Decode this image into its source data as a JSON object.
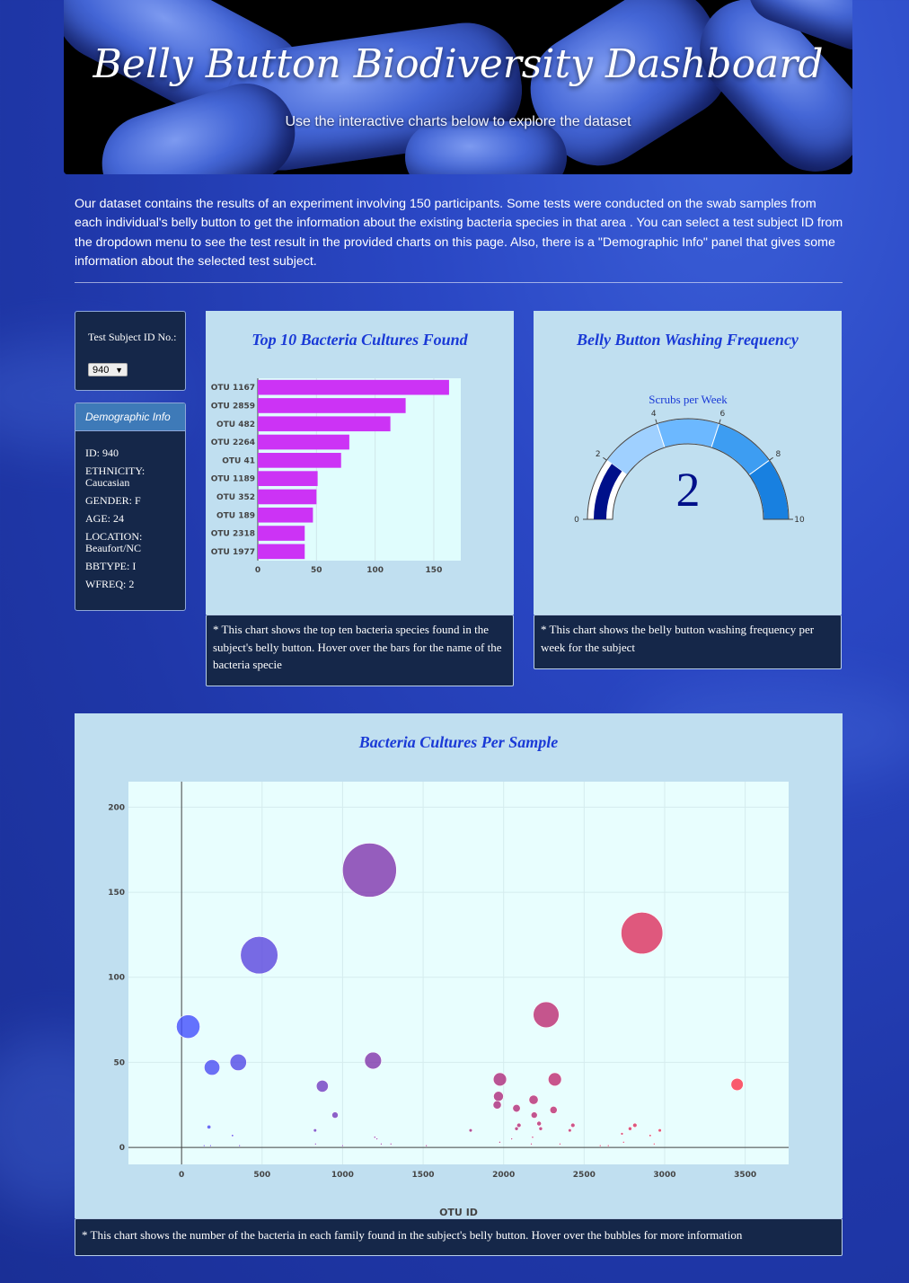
{
  "header": {
    "title": "Belly Button Biodiversity Dashboard",
    "subtitle": "Use the interactive charts below to explore the dataset"
  },
  "intro": "Our dataset contains the results of an experiment involving 150 participants. Some tests were conducted on the swab samples from each individual's belly button to get the information about the existing bacteria species in that area . You can select a test subject ID from the dropdown menu to see the test result in the provided charts on this page. Also, there is a \"Demographic Info\" panel that gives some information about the selected test subject.",
  "selector": {
    "label": "Test Subject ID No.:",
    "value": "940"
  },
  "demographics": {
    "title": "Demographic Info",
    "rows": [
      "ID: 940",
      "ETHNICITY: Caucasian",
      "GENDER: F",
      "AGE: 24",
      "LOCATION: Beaufort/NC",
      "BBTYPE: I",
      "WFREQ: 2"
    ]
  },
  "bar_card": {
    "title": "Top 10 Bacteria Cultures Found",
    "note": "* This chart shows the top ten bacteria species found in the subject's belly button. Hover over the bars for the name of the bacteria specie"
  },
  "gauge_card": {
    "title": "Belly Button Washing Frequency",
    "note": "* This chart shows the belly button washing frequency per week for the subject"
  },
  "bubble_card": {
    "title": "Bacteria Cultures Per Sample",
    "note": "* This chart shows the number of the bacteria in each family found in the subject's belly button. Hover over the bubbles for more information"
  },
  "colors": {
    "bar": "#cc33f5",
    "gauge_value": "#00108a",
    "title": "#1a3ad6"
  },
  "chart_data": [
    {
      "type": "bar",
      "orientation": "horizontal",
      "categories": [
        "OTU 1167",
        "OTU 2859",
        "OTU 482",
        "OTU 2264",
        "OTU 41",
        "OTU 1189",
        "OTU 352",
        "OTU 189",
        "OTU 2318",
        "OTU 1977"
      ],
      "values": [
        163,
        126,
        113,
        78,
        71,
        51,
        50,
        47,
        40,
        40
      ],
      "xlim": [
        0,
        173
      ],
      "xticks": [
        0,
        50,
        100,
        150
      ]
    },
    {
      "type": "gauge",
      "title": "Scrubs per Week",
      "value": 2,
      "range": [
        0,
        10
      ],
      "ticks": [
        0,
        2,
        4,
        6,
        8,
        10
      ],
      "steps": [
        {
          "range": [
            0,
            2
          ],
          "color": "#ffffff"
        },
        {
          "range": [
            2,
            4
          ],
          "color": "#9fd0ff"
        },
        {
          "range": [
            4,
            6
          ],
          "color": "#6cb8ff"
        },
        {
          "range": [
            6,
            8
          ],
          "color": "#3d9df2"
        },
        {
          "range": [
            8,
            10
          ],
          "color": "#1880e0"
        }
      ],
      "bar_color": "#00108a"
    },
    {
      "type": "scatter",
      "xlabel": "OTU ID",
      "xlim": [
        -330,
        3770
      ],
      "ylim": [
        -10,
        215
      ],
      "xticks": [
        0,
        500,
        1000,
        1500,
        2000,
        2500,
        3000,
        3500
      ],
      "yticks": [
        0,
        50,
        100,
        150,
        200
      ],
      "points": [
        {
          "x": 1167,
          "y": 163
        },
        {
          "x": 2859,
          "y": 126
        },
        {
          "x": 482,
          "y": 113
        },
        {
          "x": 2264,
          "y": 78
        },
        {
          "x": 41,
          "y": 71
        },
        {
          "x": 1189,
          "y": 51
        },
        {
          "x": 352,
          "y": 50
        },
        {
          "x": 189,
          "y": 47
        },
        {
          "x": 2318,
          "y": 40
        },
        {
          "x": 1977,
          "y": 40
        },
        {
          "x": 3450,
          "y": 37
        },
        {
          "x": 874,
          "y": 36
        },
        {
          "x": 1968,
          "y": 30
        },
        {
          "x": 1960,
          "y": 25
        },
        {
          "x": 2186,
          "y": 28
        },
        {
          "x": 2080,
          "y": 23
        },
        {
          "x": 2310,
          "y": 22
        },
        {
          "x": 2190,
          "y": 19
        },
        {
          "x": 953,
          "y": 19
        },
        {
          "x": 2220,
          "y": 14
        },
        {
          "x": 2095,
          "y": 13
        },
        {
          "x": 2430,
          "y": 13
        },
        {
          "x": 2815,
          "y": 13
        },
        {
          "x": 170,
          "y": 12
        },
        {
          "x": 2785,
          "y": 11
        },
        {
          "x": 2230,
          "y": 11
        },
        {
          "x": 2080,
          "y": 11
        },
        {
          "x": 2411,
          "y": 10
        },
        {
          "x": 829,
          "y": 10
        },
        {
          "x": 1795,
          "y": 10
        },
        {
          "x": 2970,
          "y": 10
        },
        {
          "x": 2735,
          "y": 8
        },
        {
          "x": 2910,
          "y": 7
        },
        {
          "x": 316,
          "y": 7
        },
        {
          "x": 2180,
          "y": 6
        },
        {
          "x": 1200,
          "y": 6
        },
        {
          "x": 2050,
          "y": 5
        },
        {
          "x": 1213,
          "y": 5
        },
        {
          "x": 1976,
          "y": 3
        },
        {
          "x": 2745,
          "y": 3
        },
        {
          "x": 832,
          "y": 2
        },
        {
          "x": 1240,
          "y": 2
        },
        {
          "x": 2935,
          "y": 2
        },
        {
          "x": 2350,
          "y": 2
        },
        {
          "x": 1300,
          "y": 2
        },
        {
          "x": 2172,
          "y": 2
        },
        {
          "x": 1520,
          "y": 1
        },
        {
          "x": 180,
          "y": 1
        },
        {
          "x": 360,
          "y": 1
        },
        {
          "x": 1000,
          "y": 1
        },
        {
          "x": 2600,
          "y": 1
        },
        {
          "x": 2650,
          "y": 1
        },
        {
          "x": 140,
          "y": 1
        }
      ]
    }
  ]
}
